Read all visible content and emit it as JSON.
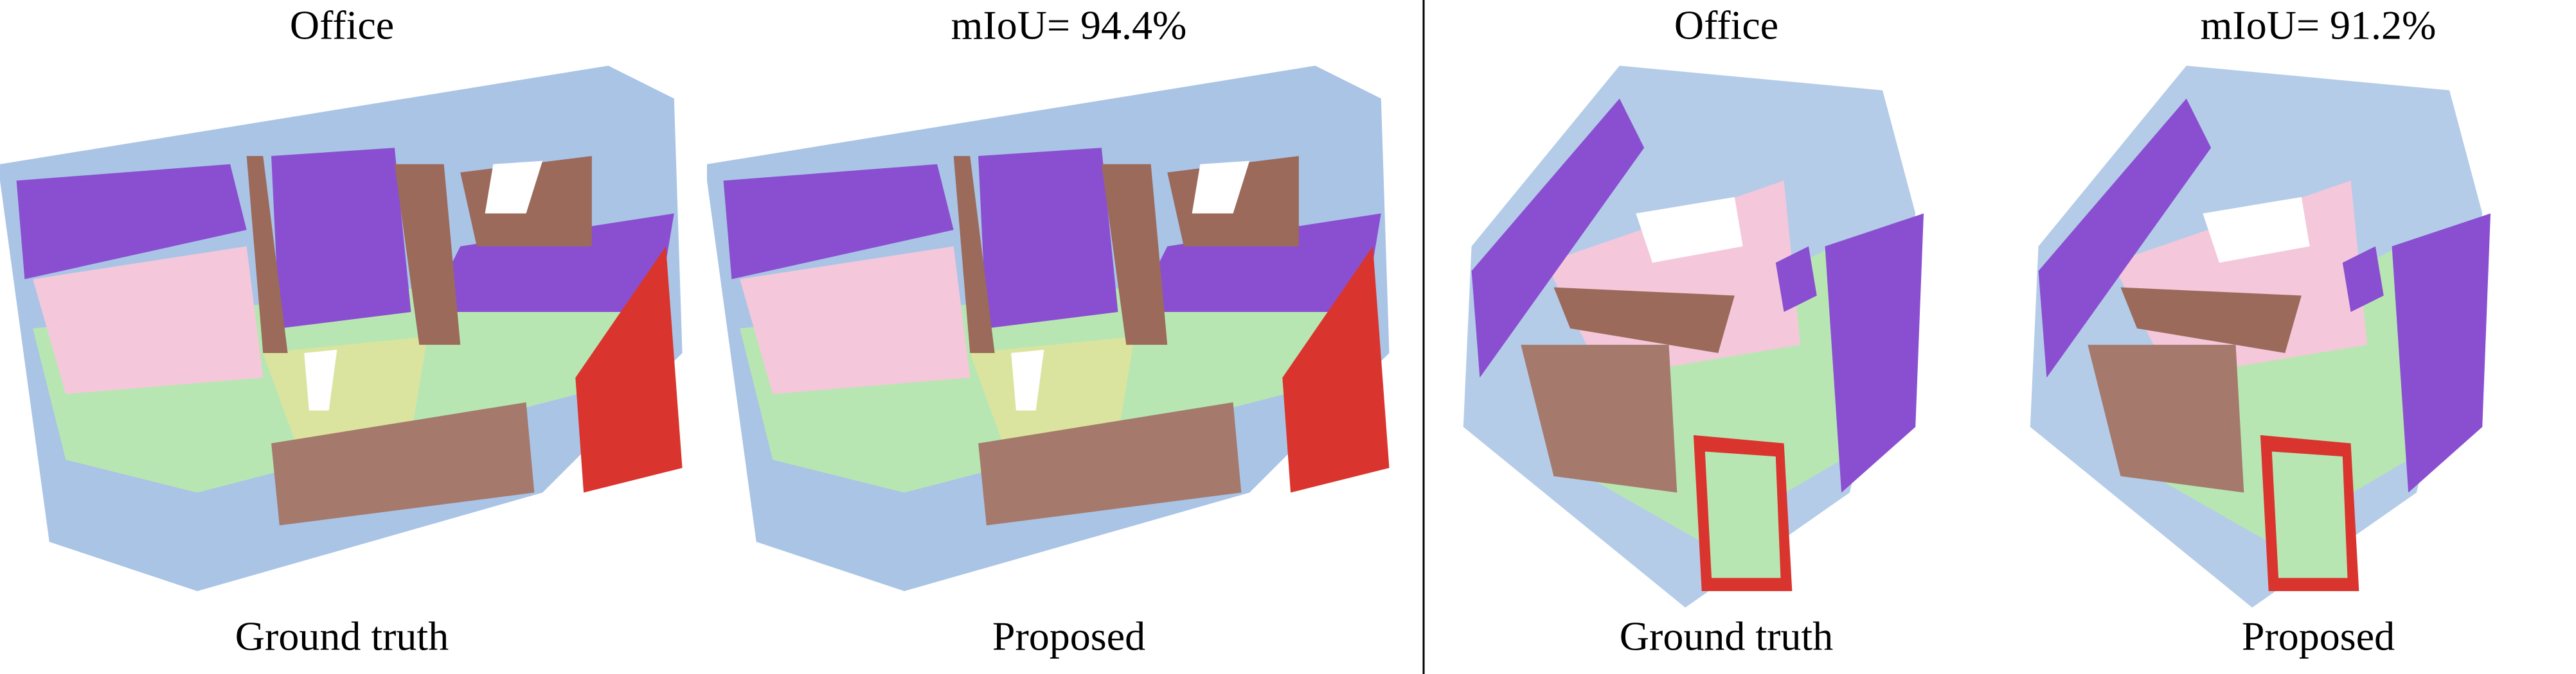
{
  "panels": [
    {
      "left_title": "Office",
      "right_title": "mIoU= 94.4%",
      "left_caption": "Ground truth",
      "right_caption": "Proposed"
    },
    {
      "left_title": "Office",
      "right_title": "mIoU= 91.2%",
      "left_caption": "Ground truth",
      "right_caption": "Proposed"
    }
  ]
}
